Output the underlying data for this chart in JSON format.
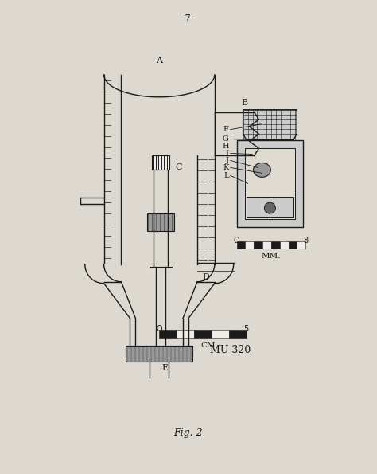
{
  "bg_color": "#ddd9d0",
  "page_num": "-7-",
  "fig_label": "Fig. 2",
  "mu_label": "MU 320",
  "cm_scale_label": "CM.",
  "mm_scale_label": "MM.",
  "black": "#1a1a1a",
  "gray": "#999999",
  "light_gray": "#cccccc",
  "dark_gray": "#666666",
  "white": "#f0ede8"
}
